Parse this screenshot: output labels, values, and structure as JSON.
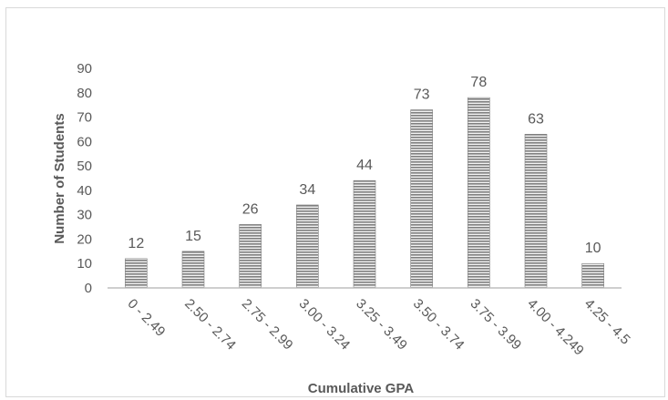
{
  "chart_data": {
    "type": "bar",
    "categories": [
      "0 - 2.49",
      "2.50 - 2.74",
      "2.75 - 2.99",
      "3.00 - 3.24",
      "3.25 - 3.49",
      "3.50 - 3.74",
      "3.75 - 3.99",
      "4.00 - 4.249",
      "4.25 - 4.5"
    ],
    "values": [
      12,
      15,
      26,
      34,
      44,
      73,
      78,
      63,
      10
    ],
    "xlabel": "Cumulative GPA",
    "ylabel": "Number of Students",
    "ylim": [
      0,
      90
    ],
    "yticks": [
      0,
      10,
      20,
      30,
      40,
      50,
      60,
      70,
      80,
      90
    ],
    "grid": false,
    "legend": "none",
    "bar_fill": "#7f7f7f",
    "bar_stripe": "#f2f2f2",
    "axis_color": "#bfbfbf",
    "text_color": "#595959"
  }
}
